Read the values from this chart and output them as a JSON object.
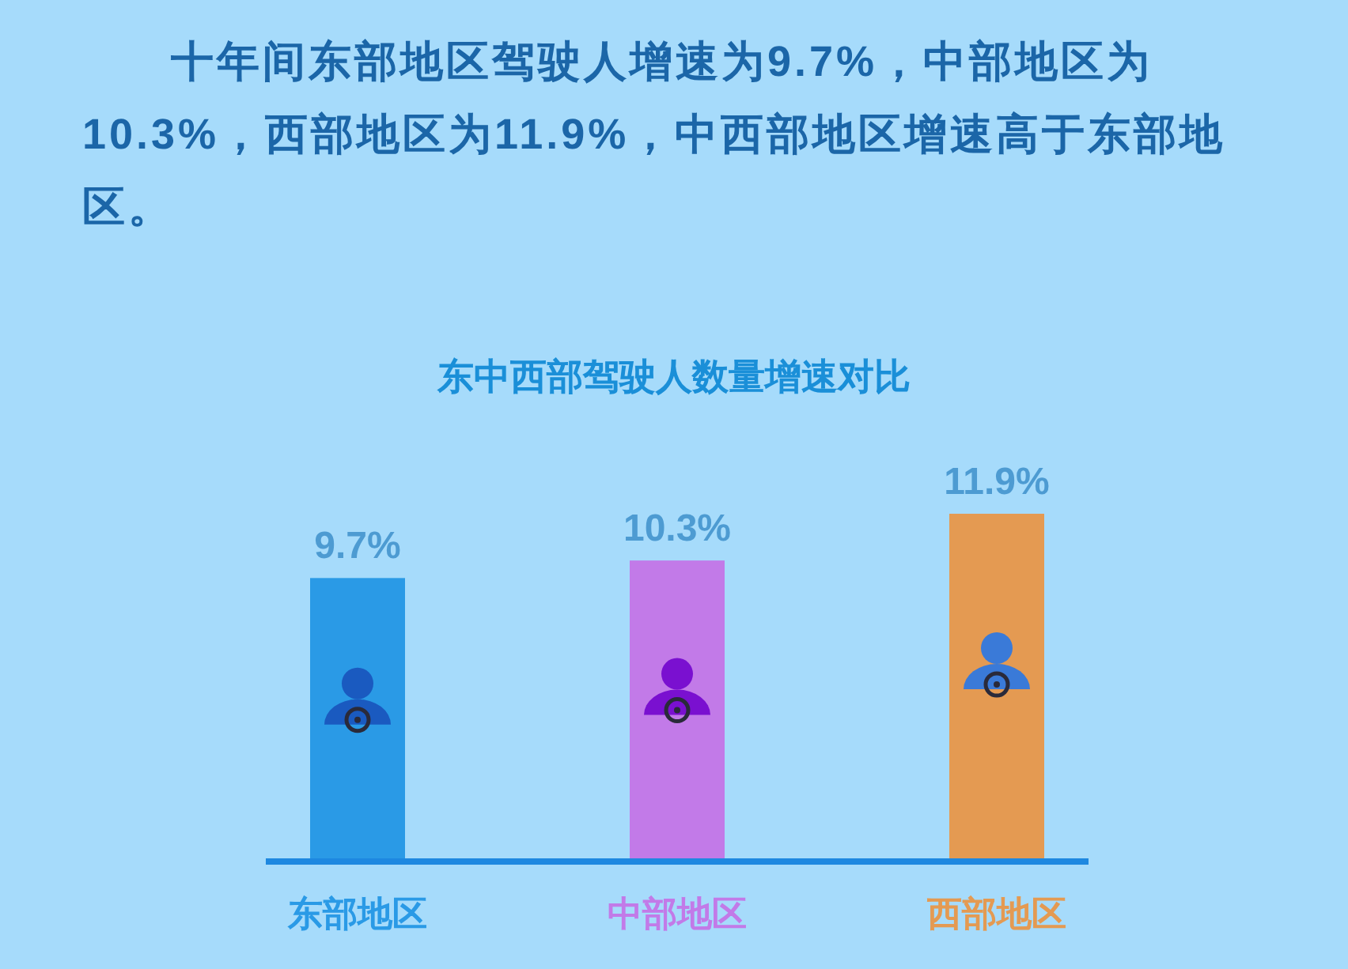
{
  "chart_data": {
    "type": "bar",
    "title": "东中西部驾驶人数量增速对比",
    "annotations": [
      "十年间东部地区驾驶人增速为9.7%，中部地区为10.3%，西部地区为11.9%，中西部地区增速高于东部地区。"
    ],
    "categories": [
      "东部地区",
      "中部地区",
      "西部地区"
    ],
    "values": [
      9.7,
      10.3,
      11.9
    ],
    "colors": [
      "#2a9ae6",
      "#c27ae8",
      "#e49a52"
    ],
    "value_labels": [
      "9.7%",
      "10.3%",
      "11.9%"
    ]
  }
}
